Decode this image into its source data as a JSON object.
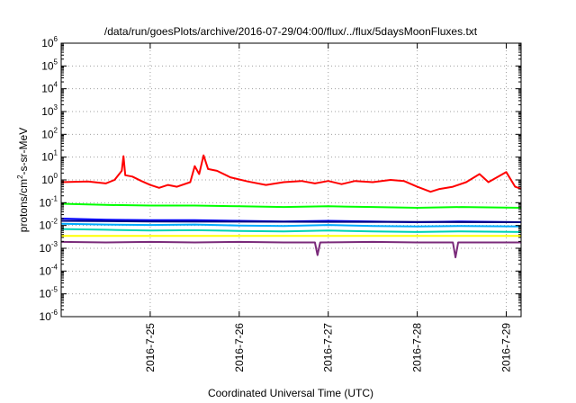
{
  "chart_data": {
    "type": "line",
    "title": "/data/run/goesPlots/archive/2016-07-29/04:00/flux/../flux/5daysMoonFluxes.txt",
    "xlabel": "Coordinated Universal Time (UTC)",
    "ylabel": "protons/cm2-s-sr-MeV",
    "ylabel_parts": {
      "pre": "protons/cm",
      "sup": "2",
      "post": "-s-sr-MeV"
    },
    "yscale": "log",
    "ylim_exponents": [
      -6,
      6
    ],
    "y_tick_base": "10",
    "y_tick_exponents": [
      "-6",
      "-5",
      "-4",
      "-3",
      "-2",
      "-1",
      "0",
      "1",
      "2",
      "3",
      "4",
      "5",
      "6"
    ],
    "xlim_days": [
      "2016-07-24 00:00",
      "2016-07-29 04:00"
    ],
    "x_ticks": [
      "2016-7-25",
      "2016-7-26",
      "2016-7-27",
      "2016-7-28",
      "2016-7-29"
    ],
    "grid": "dotted",
    "series": [
      {
        "color": "#ff0000",
        "points": [
          [
            0,
            0.8
          ],
          [
            0.3,
            0.85
          ],
          [
            0.5,
            0.7
          ],
          [
            0.6,
            1.0
          ],
          [
            0.68,
            2.5
          ],
          [
            0.7,
            11
          ],
          [
            0.72,
            1.6
          ],
          [
            0.8,
            1.4
          ],
          [
            0.9,
            0.9
          ],
          [
            1.0,
            0.6
          ],
          [
            1.1,
            0.45
          ],
          [
            1.2,
            0.6
          ],
          [
            1.3,
            0.5
          ],
          [
            1.45,
            0.8
          ],
          [
            1.5,
            4
          ],
          [
            1.55,
            1.8
          ],
          [
            1.6,
            12
          ],
          [
            1.65,
            3
          ],
          [
            1.75,
            2.5
          ],
          [
            1.9,
            1.3
          ],
          [
            2.1,
            0.85
          ],
          [
            2.3,
            0.6
          ],
          [
            2.5,
            0.8
          ],
          [
            2.7,
            0.9
          ],
          [
            2.85,
            0.7
          ],
          [
            3.0,
            0.9
          ],
          [
            3.15,
            0.65
          ],
          [
            3.3,
            0.9
          ],
          [
            3.5,
            0.8
          ],
          [
            3.7,
            1.0
          ],
          [
            3.85,
            0.9
          ],
          [
            4.0,
            0.5
          ],
          [
            4.15,
            0.3
          ],
          [
            4.25,
            0.4
          ],
          [
            4.4,
            0.5
          ],
          [
            4.55,
            0.8
          ],
          [
            4.7,
            1.8
          ],
          [
            4.8,
            0.8
          ],
          [
            5.0,
            2.2
          ],
          [
            5.1,
            0.5
          ],
          [
            5.17,
            0.4
          ]
        ]
      },
      {
        "color": "#00ff00",
        "points": [
          [
            0,
            0.09
          ],
          [
            0.5,
            0.08
          ],
          [
            1.0,
            0.075
          ],
          [
            1.5,
            0.075
          ],
          [
            2.0,
            0.07
          ],
          [
            2.5,
            0.065
          ],
          [
            3.0,
            0.07
          ],
          [
            3.5,
            0.065
          ],
          [
            4.0,
            0.06
          ],
          [
            4.5,
            0.065
          ],
          [
            5.17,
            0.06
          ]
        ]
      },
      {
        "color": "#0000ff",
        "points": [
          [
            0,
            0.02
          ],
          [
            0.5,
            0.018
          ],
          [
            1.0,
            0.017
          ],
          [
            1.5,
            0.017
          ],
          [
            2.0,
            0.016
          ],
          [
            2.5,
            0.015
          ],
          [
            3.0,
            0.016
          ],
          [
            3.5,
            0.015
          ],
          [
            4.0,
            0.014
          ],
          [
            4.5,
            0.015
          ],
          [
            5.17,
            0.014
          ]
        ]
      },
      {
        "color": "#00aaff",
        "points": [
          [
            0,
            0.012
          ],
          [
            0.5,
            0.011
          ],
          [
            1.0,
            0.0105
          ],
          [
            1.5,
            0.011
          ],
          [
            2.0,
            0.01
          ],
          [
            2.5,
            0.0095
          ],
          [
            3.0,
            0.0105
          ],
          [
            3.5,
            0.0095
          ],
          [
            4.0,
            0.009
          ],
          [
            4.5,
            0.0095
          ],
          [
            5.17,
            0.009
          ]
        ]
      },
      {
        "color": "#00d2b4",
        "points": [
          [
            0,
            0.007
          ],
          [
            0.5,
            0.0065
          ],
          [
            1.0,
            0.006
          ],
          [
            1.5,
            0.0062
          ],
          [
            2.0,
            0.0058
          ],
          [
            2.5,
            0.0055
          ],
          [
            3.0,
            0.006
          ],
          [
            3.5,
            0.0055
          ],
          [
            4.0,
            0.0052
          ],
          [
            4.5,
            0.0055
          ],
          [
            5.17,
            0.0052
          ]
        ]
      },
      {
        "color": "#000080",
        "points": [
          [
            0,
            0.016
          ],
          [
            1.0,
            0.015
          ],
          [
            2.0,
            0.0148
          ],
          [
            3.0,
            0.0145
          ],
          [
            4.0,
            0.0142
          ],
          [
            5.17,
            0.014
          ]
        ]
      },
      {
        "color": "#ffff00",
        "points": [
          [
            0,
            0.0035
          ],
          [
            5.17,
            0.0035
          ]
        ]
      },
      {
        "color": "#7a2a7a",
        "points": [
          [
            0,
            0.0019
          ],
          [
            0.5,
            0.0018
          ],
          [
            1.0,
            0.0019
          ],
          [
            1.5,
            0.0018
          ],
          [
            2.0,
            0.0019
          ],
          [
            2.5,
            0.0018
          ],
          [
            2.85,
            0.0018
          ],
          [
            2.88,
            0.0005
          ],
          [
            2.91,
            0.0018
          ],
          [
            3.5,
            0.0019
          ],
          [
            4.0,
            0.0018
          ],
          [
            4.4,
            0.0018
          ],
          [
            4.43,
            0.0004
          ],
          [
            4.46,
            0.0018
          ],
          [
            5.17,
            0.0018
          ]
        ]
      }
    ]
  }
}
